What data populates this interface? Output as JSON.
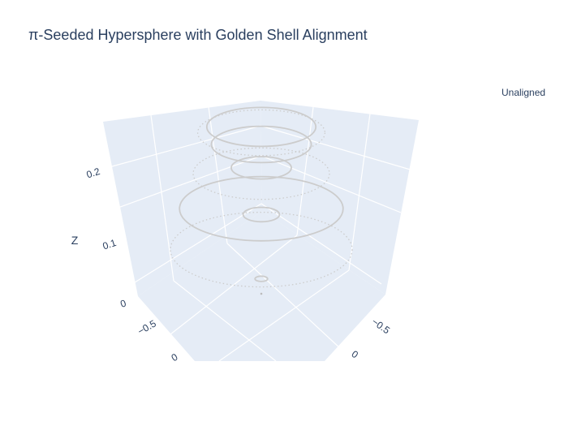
{
  "chart_data": {
    "type": "scatter3d",
    "title": "π-Seeded Hypersphere with Golden Shell Alignment",
    "legend": {
      "entries": [
        "Unaligned"
      ],
      "placement": "top-right"
    },
    "axes": {
      "z": {
        "title": "Z",
        "ticks": [
          "0",
          "0.1",
          "0.2"
        ]
      },
      "x": {
        "ticks": [
          "−0.5",
          "0"
        ]
      },
      "y": {
        "ticks": [
          "−0.5",
          "0"
        ]
      }
    },
    "series": [
      {
        "name": "Unaligned",
        "color": "#cccccc",
        "shells": [
          {
            "z": 0.02,
            "r": 0.07,
            "style": "solid"
          },
          {
            "z": 0.07,
            "r": 1.0,
            "style": "dotted"
          },
          {
            "z": 0.13,
            "r": 0.2,
            "style": "solid"
          },
          {
            "z": 0.14,
            "r": 0.9,
            "style": "solid"
          },
          {
            "z": 0.2,
            "r": 0.75,
            "style": "dotted"
          },
          {
            "z": 0.21,
            "r": 0.33,
            "style": "solid"
          },
          {
            "z": 0.25,
            "r": 0.55,
            "style": "solid"
          },
          {
            "z": 0.27,
            "r": 0.7,
            "style": "dotted"
          },
          {
            "z": 0.28,
            "r": 0.6,
            "style": "solid"
          }
        ]
      }
    ],
    "grid": true
  }
}
